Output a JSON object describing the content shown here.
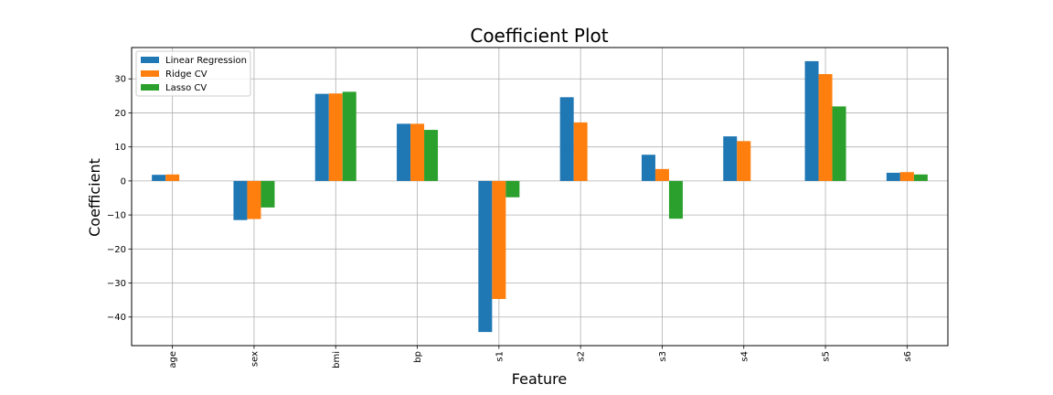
{
  "chart_data": {
    "type": "bar",
    "title": "Coefficient Plot",
    "xlabel": "Feature",
    "ylabel": "Coefficient",
    "categories": [
      "age",
      "sex",
      "bmi",
      "bp",
      "s1",
      "s2",
      "s3",
      "s4",
      "s5",
      "s6"
    ],
    "series": [
      {
        "name": "Linear Regression",
        "color": "#1f77b4",
        "values": [
          1.8,
          -11.5,
          25.6,
          16.8,
          -44.4,
          24.6,
          7.7,
          13.1,
          35.2,
          2.4
        ]
      },
      {
        "name": "Ridge CV",
        "color": "#ff7f0e",
        "values": [
          1.9,
          -11.2,
          25.7,
          16.8,
          -34.7,
          17.2,
          3.5,
          11.7,
          31.4,
          2.6
        ]
      },
      {
        "name": "Lasso CV",
        "color": "#2ca02c",
        "values": [
          0.0,
          -7.8,
          26.2,
          15.0,
          -4.8,
          0.0,
          -11.1,
          0.0,
          21.9,
          1.9
        ]
      }
    ],
    "yticks": [
      -40,
      -30,
      -20,
      -10,
      0,
      10,
      20,
      30
    ],
    "ylim": [
      -48.4,
      39.2
    ],
    "grid": true,
    "legend_position": "top-left",
    "xtick_rotation": "vertical"
  }
}
